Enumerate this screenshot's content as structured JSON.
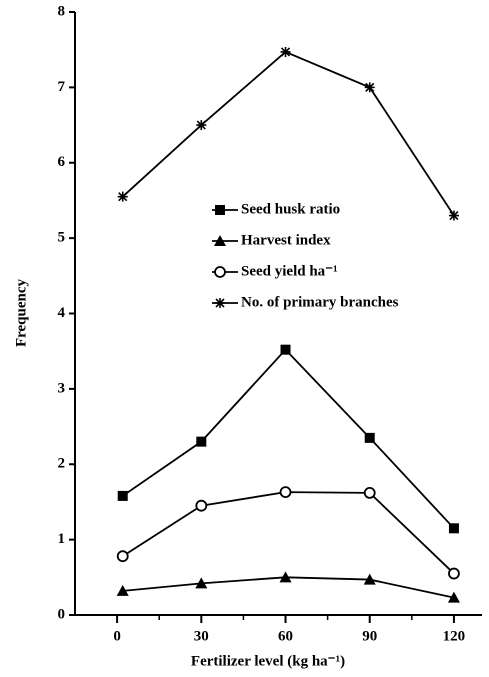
{
  "chart_data": {
    "type": "line",
    "x_label": "Fertilizer level (kg ha⁻¹)",
    "y_label": "Frequency",
    "x": [
      2,
      30,
      60,
      90,
      120
    ],
    "series": [
      {
        "name": "Seed husk ratio",
        "marker": "square",
        "color": "#000000",
        "values": [
          1.58,
          2.3,
          3.52,
          2.35,
          1.15
        ]
      },
      {
        "name": "Harvest index",
        "marker": "triangle",
        "color": "#000000",
        "values": [
          0.32,
          0.42,
          0.5,
          0.47,
          0.23
        ]
      },
      {
        "name": "Seed yield ha⁻¹",
        "marker": "circle",
        "color": "#000000",
        "values": [
          0.78,
          1.45,
          1.63,
          1.62,
          0.55
        ]
      },
      {
        "name": "No. of primary branches",
        "marker": "star",
        "color": "#000000",
        "values": [
          5.55,
          6.5,
          7.47,
          7.0,
          5.3
        ]
      }
    ],
    "xlim": [
      -15,
      130
    ],
    "xticks": [
      0,
      30,
      60,
      90,
      120
    ],
    "xminor": [
      15,
      45,
      75,
      105
    ],
    "ylim": [
      0,
      8
    ],
    "yticks": [
      0,
      1,
      2,
      3,
      4,
      5,
      6,
      7,
      8
    ],
    "grid": false
  }
}
